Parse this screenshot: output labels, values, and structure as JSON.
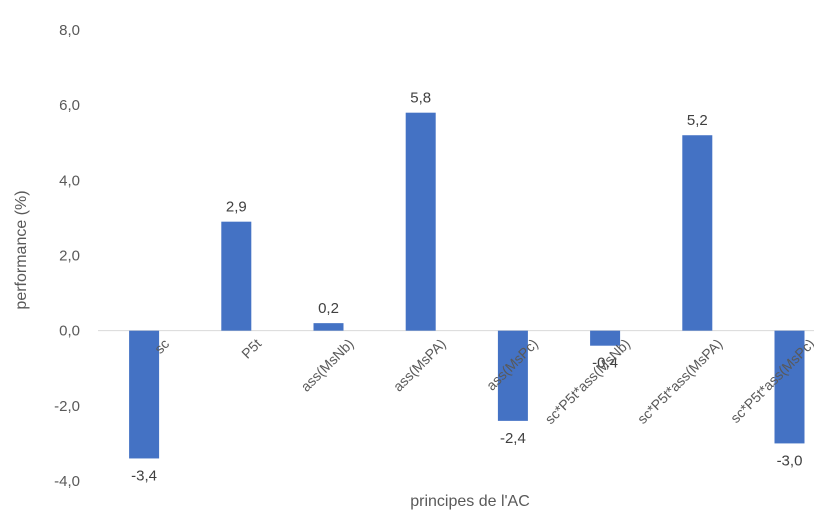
{
  "chart_data": {
    "type": "bar",
    "title": "",
    "xlabel": "principes de l'AC",
    "ylabel": "performance (%)",
    "ylim": [
      -4.0,
      8.0
    ],
    "yticks": [
      "8,0",
      "6,0",
      "4,0",
      "2,0",
      "0,0",
      "-2,0",
      "-4,0"
    ],
    "categories": [
      "sc",
      "P5t",
      "ass(MsNb)",
      "ass(MsPA)",
      "ass(MsPc)",
      "sc*P5t*ass(MsNb)",
      "sc*P5t*ass(MsPA)",
      "sc*P5t*ass(MsPc)"
    ],
    "values": [
      -3.4,
      2.9,
      0.2,
      5.8,
      -2.4,
      -0.4,
      5.2,
      -3.0
    ],
    "value_labels": [
      "-3,4",
      "2,9",
      "0,2",
      "5,8",
      "-2,4",
      "-0,4",
      "5,2",
      "-3,0"
    ],
    "grid": false,
    "legend": "none",
    "bar_color": "#4472C4"
  }
}
